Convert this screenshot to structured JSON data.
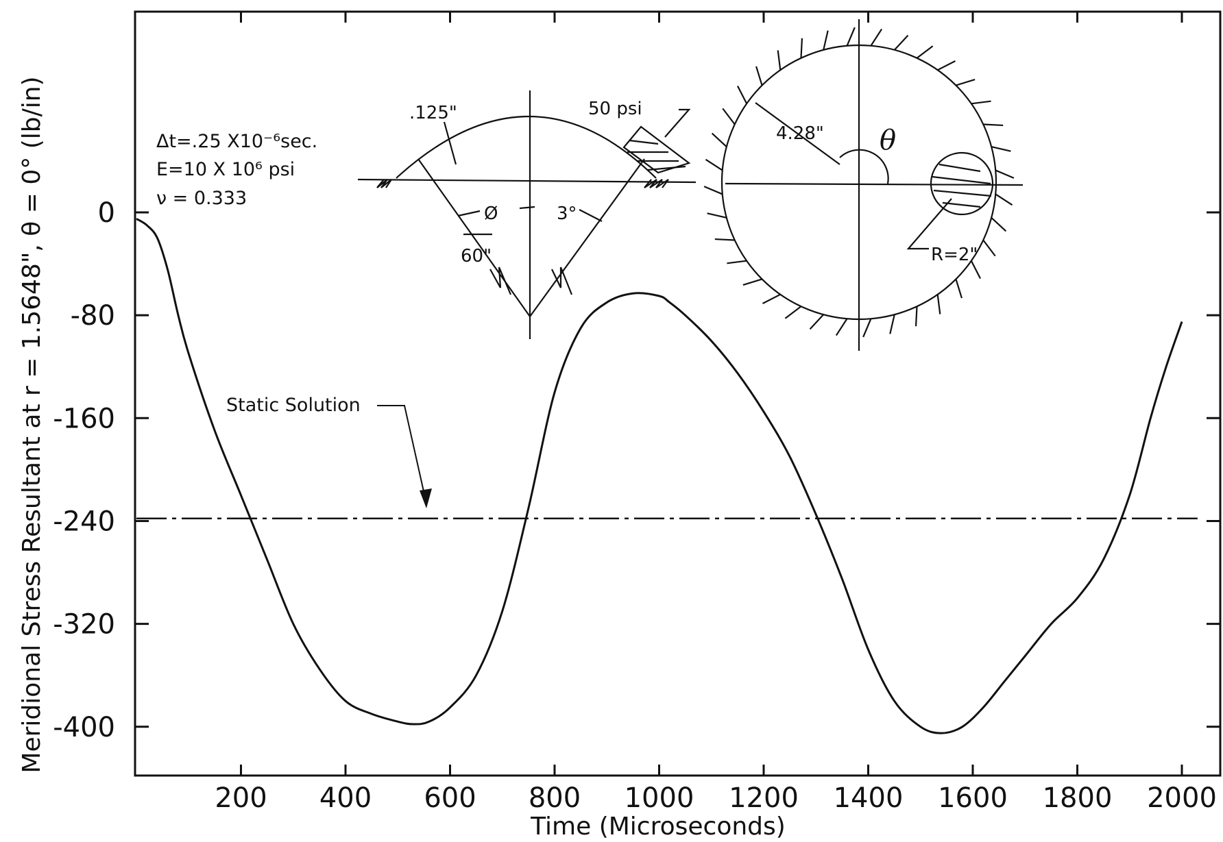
{
  "chart_data": {
    "type": "line",
    "title": "",
    "xlabel": "Time (Microseconds)",
    "ylabel": "Meridional Stress Resultant  at  r = 1.5648\", θ = 0° (lb/in)",
    "xlim": [
      0,
      2050
    ],
    "ylim": [
      -440,
      150
    ],
    "x_ticks": [
      200,
      400,
      600,
      800,
      1000,
      1200,
      1400,
      1600,
      1800,
      2000
    ],
    "x_tick_labels": [
      "200",
      "400",
      "600",
      "800",
      "1000",
      "1200",
      "1400",
      "1600",
      "1800",
      "2000"
    ],
    "y_ticks": [
      0,
      -80,
      -160,
      -240,
      -320,
      -400
    ],
    "y_tick_labels": [
      "0",
      "-80",
      "-160",
      "-240",
      "-320",
      "-400"
    ],
    "grid": false,
    "series": [
      {
        "x": [
          0,
          20,
          40,
          60,
          80,
          100,
          150,
          200,
          250,
          300,
          350,
          400,
          450,
          500,
          530,
          560,
          600,
          650,
          700,
          750,
          800,
          850,
          900,
          950,
          1000,
          1020,
          1050,
          1100,
          1150,
          1200,
          1250,
          1300,
          1350,
          1400,
          1450,
          1500,
          1540,
          1580,
          1620,
          1660,
          1700,
          1750,
          1800,
          1850,
          1900,
          1940,
          1970,
          2000
        ],
        "y": [
          -5,
          -10,
          -20,
          -45,
          -80,
          -110,
          -170,
          -220,
          -270,
          -320,
          -355,
          -380,
          -390,
          -396,
          -398,
          -396,
          -385,
          -360,
          -310,
          -230,
          -140,
          -90,
          -70,
          -63,
          -65,
          -70,
          -80,
          -100,
          -125,
          -155,
          -190,
          -235,
          -285,
          -340,
          -380,
          -400,
          -405,
          -400,
          -385,
          -365,
          -345,
          -320,
          -300,
          -270,
          -220,
          -160,
          -120,
          -85
        ]
      },
      {
        "name": "Static Solution",
        "style": "dash-dot",
        "x": [
          0,
          2030
        ],
        "y": [
          -238,
          -238
        ]
      }
    ],
    "annotations": {
      "static_label": "Static Solution",
      "params": [
        "Δt=.25 X10⁻⁶sec.",
        "E=10 X 10⁶ psi",
        "ν = 0.333"
      ],
      "thickness": ".125\"",
      "pressure": "50 psi",
      "phi": "Ø",
      "angle": "3°",
      "shell_radius": "60\"",
      "sphere_radius": "4.28\"",
      "theta": "θ",
      "load_radius": "R=2\""
    }
  }
}
